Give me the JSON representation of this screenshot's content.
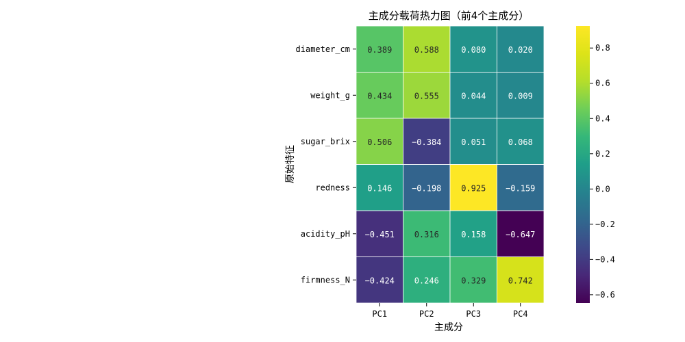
{
  "chart_data": {
    "type": "heatmap",
    "title": "主成分载荷热力图（前4个主成分）",
    "xlabel": "主成分",
    "ylabel": "原始特征",
    "columns": [
      "PC1",
      "PC2",
      "PC3",
      "PC4"
    ],
    "rows": [
      "diameter_cm",
      "weight_g",
      "sugar_brix",
      "redness",
      "acidity_pH",
      "firmness_N"
    ],
    "values": [
      [
        0.389,
        0.588,
        0.08,
        0.02
      ],
      [
        0.434,
        0.555,
        0.044,
        0.009
      ],
      [
        0.506,
        -0.384,
        0.051,
        0.068
      ],
      [
        0.146,
        -0.198,
        0.925,
        -0.159
      ],
      [
        -0.451,
        0.316,
        0.158,
        -0.647
      ],
      [
        -0.424,
        0.246,
        0.329,
        0.742
      ]
    ],
    "value_labels": [
      [
        "0.389",
        "0.588",
        "0.080",
        "0.020"
      ],
      [
        "0.434",
        "0.555",
        "0.044",
        "0.009"
      ],
      [
        "0.506",
        "−0.384",
        "0.051",
        "0.068"
      ],
      [
        "0.146",
        "−0.198",
        "0.925",
        "−0.159"
      ],
      [
        "−0.451",
        "0.316",
        "0.158",
        "−0.647"
      ],
      [
        "−0.424",
        "0.246",
        "0.329",
        "0.742"
      ]
    ],
    "colormap": "viridis",
    "vmin": -0.647,
    "vmax": 0.925,
    "colorbar_ticks": [
      0.8,
      0.6,
      0.4,
      0.2,
      0.0,
      -0.2,
      -0.4,
      -0.6
    ],
    "colorbar_tick_labels": [
      "0.8",
      "0.6",
      "0.4",
      "0.2",
      "0.0",
      "−0.2",
      "−0.4",
      "−0.6"
    ]
  }
}
